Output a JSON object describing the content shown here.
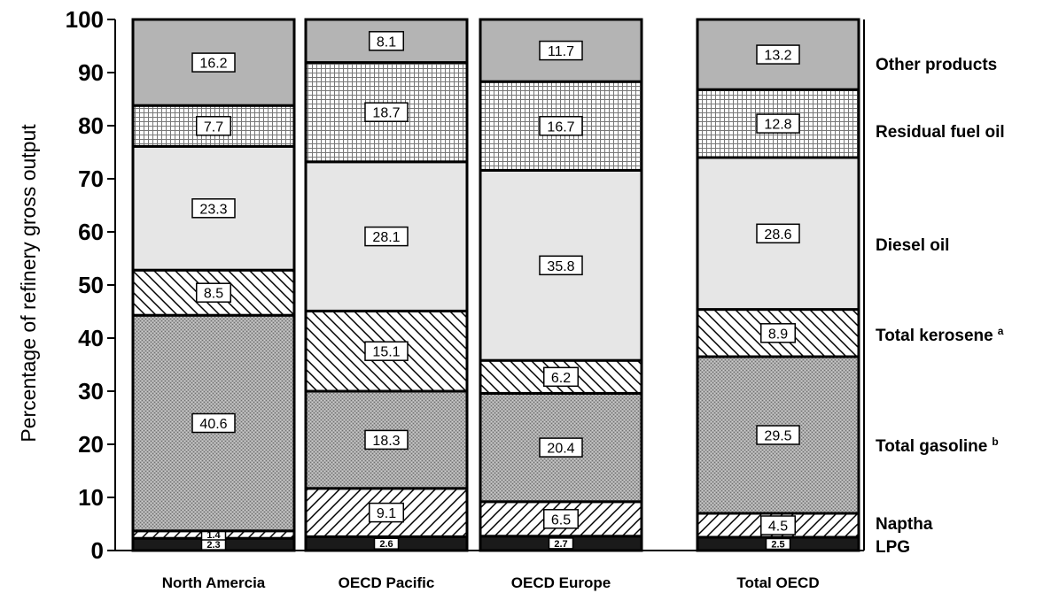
{
  "chart_data": {
    "type": "bar",
    "stacked": true,
    "ylabel": "Percentage of refinery gross output",
    "ylim": [
      0,
      100
    ],
    "yticks": [
      0,
      10,
      20,
      30,
      40,
      50,
      60,
      70,
      80,
      90,
      100
    ],
    "categories": [
      "North Amercia",
      "OECD Pacific",
      "OECD Europe",
      "Total OECD"
    ],
    "series": [
      {
        "name": "LPG",
        "label": "LPG",
        "pattern": "dark-solid",
        "values": [
          2.3,
          2.6,
          2.7,
          2.5
        ]
      },
      {
        "name": "Naptha",
        "label": "Naptha",
        "pattern": "diagonal-forward",
        "values": [
          1.4,
          9.1,
          6.5,
          4.5
        ]
      },
      {
        "name": "Total gasoline",
        "label": "Total gasoline",
        "superscript": "b",
        "pattern": "fine-stipple",
        "values": [
          40.6,
          18.3,
          20.4,
          29.5
        ]
      },
      {
        "name": "Total kerosene",
        "label": "Total kerosene",
        "superscript": "a",
        "pattern": "diagonal-back",
        "values": [
          8.5,
          15.1,
          6.2,
          8.9
        ]
      },
      {
        "name": "Diesel oil",
        "label": "Diesel oil",
        "pattern": "light-solid",
        "values": [
          23.3,
          28.1,
          35.8,
          28.6
        ]
      },
      {
        "name": "Residual fuel oil",
        "label": "Residual fuel oil",
        "pattern": "crosshatch",
        "values": [
          7.7,
          18.7,
          16.7,
          12.8
        ]
      },
      {
        "name": "Other products",
        "label": "Other products",
        "pattern": "medium-solid",
        "values": [
          16.2,
          8.1,
          11.7,
          13.2
        ]
      }
    ],
    "colors": {
      "lpg": "#1a1a1a",
      "gasoline": "#a8a8a8",
      "diesel": "#e6e6e6",
      "other": "#b4b4b4",
      "white": "#ffffff",
      "black": "#000000"
    },
    "grid": false,
    "legend": "right"
  }
}
